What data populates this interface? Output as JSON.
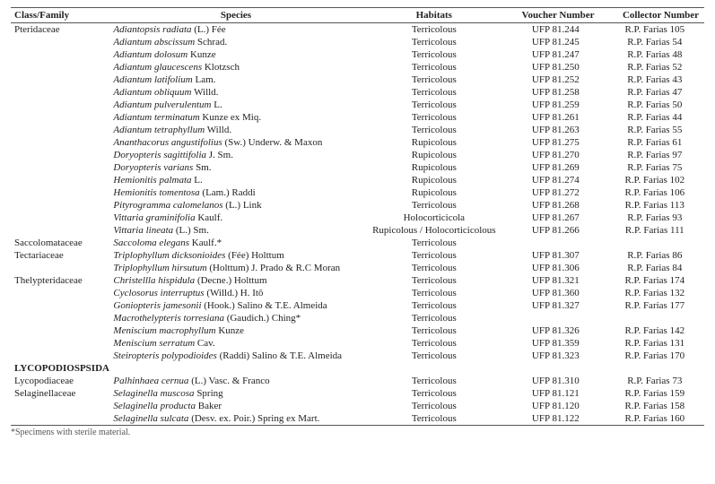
{
  "columns": {
    "family": "Class/Family",
    "species": "Species",
    "habitat": "Habitats",
    "voucher": "Voucher Number",
    "collector": "Collector Number"
  },
  "footnote": "*Specimens with sterile material.",
  "rows": [
    {
      "family": "Pteridaceae",
      "genus": "Adiantopsis radiata",
      "auth": " (L.) Fée",
      "habitat": "Terricolous",
      "voucher": "UFP 81.244",
      "collector": "R.P. Farias 105"
    },
    {
      "family": "",
      "genus": "Adiantum abscissum",
      "auth": " Schrad.",
      "habitat": "Terricolous",
      "voucher": "UFP 81.245",
      "collector": "R.P. Farias 54"
    },
    {
      "family": "",
      "genus": "Adiantum dolosum",
      "auth": " Kunze",
      "habitat": "Terricolous",
      "voucher": "UFP 81.247",
      "collector": "R.P. Farias 48"
    },
    {
      "family": "",
      "genus": "Adiantum glaucescens",
      "auth": " Klotzsch",
      "habitat": "Terricolous",
      "voucher": "UFP 81.250",
      "collector": "R.P. Farias 52"
    },
    {
      "family": "",
      "genus": "Adiantum latifolium",
      "auth": " Lam.",
      "habitat": "Terricolous",
      "voucher": "UFP 81.252",
      "collector": "R.P. Farias 43"
    },
    {
      "family": "",
      "genus": "Adiantum obliquum",
      "auth": " Willd.",
      "habitat": "Terricolous",
      "voucher": "UFP 81.258",
      "collector": "R.P. Farias 47"
    },
    {
      "family": "",
      "genus": "Adiantum pulverulentum",
      "auth": " L.",
      "habitat": "Terricolous",
      "voucher": "UFP 81.259",
      "collector": "R.P. Farias 50"
    },
    {
      "family": "",
      "genus": "Adiantum terminatum",
      "auth": " Kunze ex Miq.",
      "habitat": "Terricolous",
      "voucher": "UFP 81.261",
      "collector": "R.P. Farias 44"
    },
    {
      "family": "",
      "genus": "Adiantum tetraphyllum",
      "auth": " Willd.",
      "habitat": "Terricolous",
      "voucher": "UFP 81.263",
      "collector": "R.P. Farias 55"
    },
    {
      "family": "",
      "genus": "Ananthacorus angustifolius",
      "auth": " (Sw.) Underw. & Maxon",
      "habitat": "Rupicolous",
      "voucher": "UFP 81.275",
      "collector": "R.P. Farias 61"
    },
    {
      "family": "",
      "genus": "Doryopteris sagittifolia",
      "auth": " J. Sm.",
      "habitat": "Rupicolous",
      "voucher": "UFP 81.270",
      "collector": "R.P. Farias 97"
    },
    {
      "family": "",
      "genus": "Doryopteris varians",
      "auth": " Sm.",
      "habitat": "Rupicolous",
      "voucher": "UFP 81.269",
      "collector": "R.P. Farias 75"
    },
    {
      "family": "",
      "genus": "Hemionitis palmata",
      "auth": " L.",
      "habitat": "Rupicolous",
      "voucher": "UFP 81.274",
      "collector": "R.P. Farias 102"
    },
    {
      "family": "",
      "genus": "Hemionitis tomentosa",
      "auth": " (Lam.) Raddi",
      "habitat": "Rupicolous",
      "voucher": "UFP 81.272",
      "collector": "R.P. Farias 106"
    },
    {
      "family": "",
      "genus": "Pityrogramma calomelanos",
      "auth": " (L.) Link",
      "habitat": "Terricolous",
      "voucher": "UFP 81.268",
      "collector": "R.P. Farias 113"
    },
    {
      "family": "",
      "genus": "Vittaria graminifolia",
      "auth": " Kaulf.",
      "habitat": "Holocorticicola",
      "voucher": "UFP 81.267",
      "collector": "R.P. Farias 93"
    },
    {
      "family": "",
      "genus": "Vittaria lineata",
      "auth": " (L.) Sm.",
      "habitat": "Rupicolous / Holocorticicolous",
      "voucher": "UFP 81.266",
      "collector": "R.P. Farias 111"
    },
    {
      "family": "Saccolomataceae",
      "genus": "Saccoloma elegans",
      "auth": " Kaulf.*",
      "habitat": "Terricolous",
      "voucher": "",
      "collector": ""
    },
    {
      "family": "Tectariaceae",
      "genus": "Triplophyllum dicksonioides",
      "auth": " (Fée) Holttum",
      "habitat": "Terricolous",
      "voucher": "UFP 81.307",
      "collector": "R.P. Farias 86"
    },
    {
      "family": "",
      "genus": "Triplophyllum hirsutum",
      "auth": " (Holttum) J. Prado & R.C Moran",
      "habitat": "Terricolous",
      "voucher": "UFP 81.306",
      "collector": "R.P. Farias 84"
    },
    {
      "family": "Thelypteridaceae",
      "genus": "Christellla hispidula",
      "auth": " (Decne.) Holttum",
      "habitat": "Terricolous",
      "voucher": "UFP 81.321",
      "collector": "R.P. Farias 174"
    },
    {
      "family": "",
      "genus": "Cyclosorus interruptus",
      "auth": " (Willd.) H. Itô",
      "habitat": "Terricolous",
      "voucher": "UFP 81.360",
      "collector": "R.P. Farias 132"
    },
    {
      "family": "",
      "genus": "Goniopteris jamesonii",
      "auth": " (Hook.) Salino & T.E. Almeida",
      "habitat": "Terricolous",
      "voucher": "UFP 81.327",
      "collector": "R.P. Farias 177"
    },
    {
      "family": "",
      "genus": "Macrothelypteris torresiana",
      "auth": " (Gaudich.) Ching*",
      "habitat": "Terricolous",
      "voucher": "",
      "collector": ""
    },
    {
      "family": "",
      "genus": "Meniscium macrophyllum",
      "auth": " Kunze",
      "habitat": "Terricolous",
      "voucher": "UFP 81.326",
      "collector": "R.P. Farias 142"
    },
    {
      "family": "",
      "genus": "Meniscium serratum",
      "auth": " Cav.",
      "habitat": "Terricolous",
      "voucher": "UFP 81.359",
      "collector": "R.P. Farias 131"
    },
    {
      "family": "",
      "genus": "Steiropteris polypodioides",
      "auth": " (Raddi) Salino & T.E. Almeida",
      "habitat": "Terricolous",
      "voucher": "UFP 81.323",
      "collector": "R.P. Farias 170"
    },
    {
      "class": "LYCOPODIOSPSIDA"
    },
    {
      "family": "Lycopodiaceae",
      "genus": "Palhinhaea cernua",
      "auth": " (L.) Vasc. & Franco",
      "habitat": "Terricolous",
      "voucher": "UFP 81.310",
      "collector": "R.P. Farias 73"
    },
    {
      "family": "Selaginellaceae",
      "genus": "Selaginella muscosa",
      "auth": " Spring",
      "habitat": "Terricolous",
      "voucher": "UFP 81.121",
      "collector": "R.P. Farias 159"
    },
    {
      "family": "",
      "genus": "Selaginella producta",
      "auth": " Baker",
      "habitat": "Terricolous",
      "voucher": "UFP 81.120",
      "collector": "R.P. Farias 158"
    },
    {
      "family": "",
      "genus": "Selaginella sulcata",
      "auth": " (Desv. ex. Poir.) Spring ex Mart.",
      "habitat": "Terricolous",
      "voucher": "UFP 81.122",
      "collector": "R.P. Farias 160"
    }
  ]
}
